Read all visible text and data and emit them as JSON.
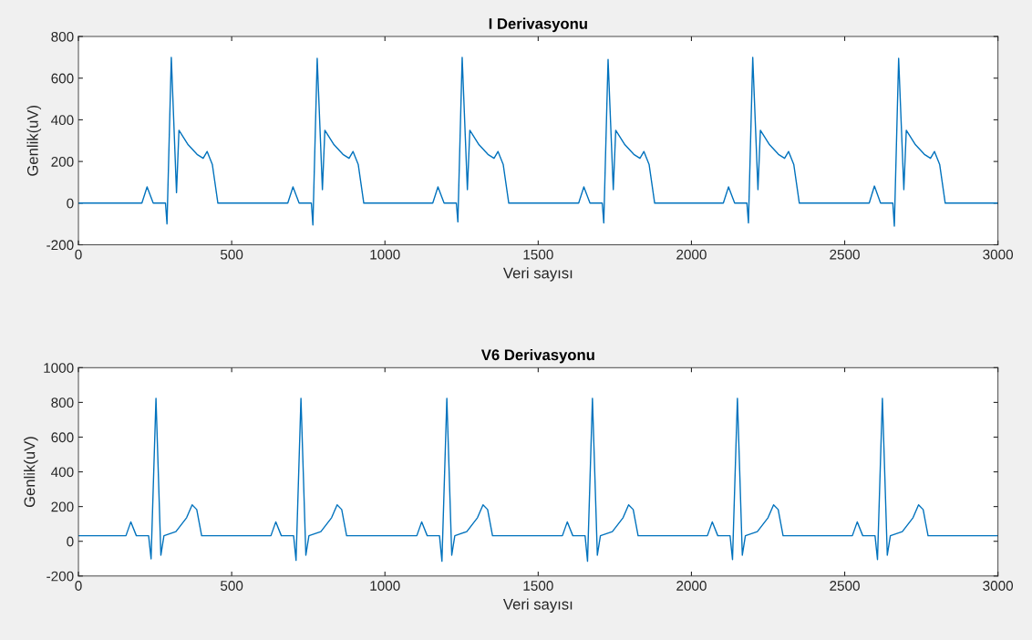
{
  "chart_data": [
    {
      "type": "line",
      "title": "I Derivasyonu",
      "xlabel": "Veri sayısı",
      "ylabel": "Genlik(uV)",
      "xlim": [
        0,
        3000
      ],
      "xticks": [
        0,
        500,
        1000,
        1500,
        2000,
        2500,
        3000
      ],
      "ylim": [
        -200,
        800
      ],
      "yticks": [
        -200,
        0,
        200,
        400,
        600,
        800
      ],
      "series": [
        {
          "color": "#0072bd",
          "x": [
            1,
            207,
            224,
            244,
            284,
            289,
            303,
            320,
            328,
            358,
            387,
            407,
            420,
            437,
            455,
            683,
            700,
            720,
            760,
            765,
            779,
            796,
            804,
            834,
            863,
            883,
            896,
            913,
            931,
            1156,
            1173,
            1193,
            1233,
            1238,
            1252,
            1269,
            1277,
            1307,
            1336,
            1356,
            1369,
            1386,
            1404,
            1632,
            1649,
            1669,
            1709,
            1714,
            1728,
            1745,
            1753,
            1783,
            1812,
            1832,
            1845,
            1862,
            1880,
            2104,
            2121,
            2141,
            2181,
            2186,
            2200,
            2217,
            2225,
            2255,
            2284,
            2304,
            2317,
            2334,
            2352,
            2580,
            2597,
            2617,
            2657,
            2662,
            2676,
            2693,
            2701,
            2731,
            2760,
            2780,
            2793,
            2810,
            2828,
            3000
          ],
          "values": [
            0,
            0,
            78,
            0,
            0,
            -100,
            700,
            50,
            350,
            280,
            234,
            215,
            248,
            185,
            0,
            0,
            78,
            0,
            0,
            -105,
            695,
            65,
            350,
            280,
            234,
            215,
            248,
            185,
            0,
            0,
            78,
            0,
            0,
            -90,
            700,
            65,
            350,
            280,
            234,
            215,
            248,
            185,
            0,
            0,
            78,
            0,
            0,
            -95,
            690,
            65,
            350,
            280,
            234,
            215,
            248,
            185,
            0,
            0,
            78,
            0,
            0,
            -95,
            700,
            65,
            350,
            280,
            234,
            215,
            248,
            185,
            0,
            0,
            82,
            0,
            0,
            -110,
            695,
            65,
            350,
            280,
            234,
            215,
            248,
            185,
            0,
            0
          ]
        }
      ]
    },
    {
      "type": "line",
      "title": "V6 Derivasyonu",
      "xlabel": "Veri sayısı",
      "ylabel": "Genlik(uV)",
      "xlim": [
        0,
        3000
      ],
      "xticks": [
        0,
        500,
        1000,
        1500,
        2000,
        2500,
        3000
      ],
      "ylim": [
        -200,
        1000
      ],
      "yticks": [
        -200,
        0,
        200,
        400,
        600,
        800,
        1000
      ],
      "series": [
        {
          "color": "#0072bd",
          "x": [
            1,
            155,
            171,
            189,
            229,
            237,
            253,
            269,
            279,
            318,
            353,
            371,
            386,
            402,
            628,
            644,
            662,
            702,
            710,
            726,
            742,
            752,
            791,
            826,
            844,
            859,
            875,
            1104,
            1120,
            1138,
            1178,
            1186,
            1202,
            1218,
            1228,
            1267,
            1302,
            1320,
            1335,
            1351,
            1579,
            1595,
            1613,
            1653,
            1661,
            1677,
            1693,
            1703,
            1742,
            1777,
            1795,
            1810,
            1826,
            2052,
            2068,
            2086,
            2126,
            2134,
            2150,
            2166,
            2176,
            2215,
            2250,
            2268,
            2283,
            2299,
            2525,
            2541,
            2559,
            2599,
            2607,
            2623,
            2639,
            2649,
            2688,
            2723,
            2741,
            2756,
            2772,
            3000
          ],
          "values": [
            32,
            32,
            112,
            32,
            32,
            -101,
            824,
            -80,
            32,
            56,
            136,
            210,
            183,
            32,
            32,
            112,
            32,
            32,
            -110,
            824,
            -80,
            32,
            56,
            136,
            210,
            183,
            32,
            32,
            112,
            32,
            32,
            -115,
            824,
            -80,
            32,
            56,
            136,
            210,
            183,
            32,
            32,
            112,
            32,
            32,
            -115,
            824,
            -80,
            32,
            56,
            136,
            210,
            183,
            32,
            32,
            112,
            32,
            32,
            -105,
            824,
            -80,
            32,
            56,
            136,
            210,
            183,
            32,
            32,
            112,
            32,
            32,
            -105,
            824,
            -80,
            32,
            56,
            136,
            210,
            183,
            32,
            32
          ]
        }
      ]
    }
  ]
}
